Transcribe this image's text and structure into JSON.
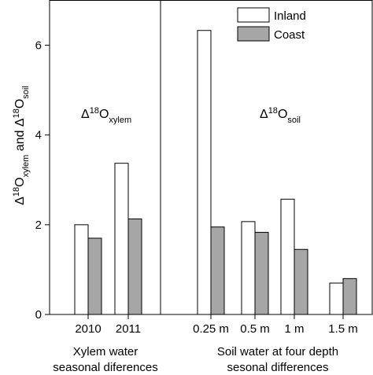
{
  "chart_data": {
    "type": "bar",
    "ylabel_parts": {
      "delta": "Δ",
      "sup1": "18",
      "o1": "O",
      "sub1": "xylem",
      "and": " and ",
      "delta2": "Δ",
      "sup2": "18",
      "o2": "O",
      "sub2": "soil"
    },
    "ylim": [
      0,
      7
    ],
    "yticks": [
      0,
      2,
      4,
      6
    ],
    "categories": [
      "2010",
      "2011",
      "0.25 m",
      "0.5 m",
      "1 m",
      "1.5 m"
    ],
    "series": [
      {
        "name": "Inland",
        "color": "#ffffff",
        "values": [
          2.0,
          3.37,
          6.33,
          2.07,
          2.57,
          0.7
        ]
      },
      {
        "name": "Coast",
        "color": "#a6a6a6",
        "values": [
          1.7,
          2.13,
          1.95,
          1.83,
          1.45,
          0.8
        ]
      }
    ],
    "panels": [
      {
        "annotation": {
          "delta": "Δ",
          "sup": "18",
          "base": "O",
          "sub": "xylem"
        },
        "group_label_line1": "Xylem water",
        "group_label_line2": "seasonal diferences"
      },
      {
        "annotation": {
          "delta": "Δ",
          "sup": "18",
          "base": "O",
          "sub": "soil"
        },
        "group_label_line1": "Soil water at four depth",
        "group_label_line2": "sesonal differences"
      }
    ],
    "legend_position": "top-right",
    "grid": false
  }
}
